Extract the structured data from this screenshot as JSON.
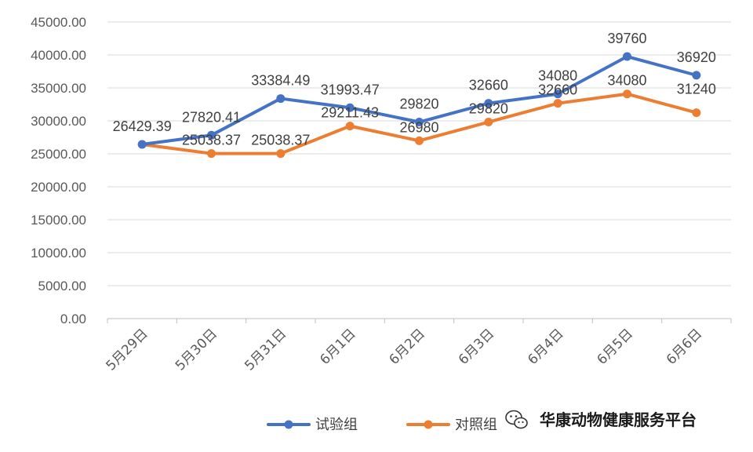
{
  "chart_data": {
    "type": "line",
    "categories": [
      "5月29日",
      "5月30日",
      "5月31日",
      "6月1日",
      "6月2日",
      "6月3日",
      "6月4日",
      "6月5日",
      "6月6日"
    ],
    "y_tick_labels": [
      "0.00",
      "5000.00",
      "10000.00",
      "15000.00",
      "20000.00",
      "25000.00",
      "30000.00",
      "35000.00",
      "40000.00",
      "45000.00"
    ],
    "ylim": [
      0,
      45000
    ],
    "grid": true,
    "legend_position": "bottom",
    "series": [
      {
        "name": "试验组",
        "color": "#4472C4",
        "values": [
          26429.39,
          27820.41,
          33384.49,
          31993.47,
          29820,
          32660,
          34080,
          39760,
          36920
        ],
        "labels": [
          "26429.39",
          "27820.41",
          "33384.49",
          "31993.47",
          "29820",
          "32660",
          "34080",
          "39760",
          "36920"
        ]
      },
      {
        "name": "对照组",
        "color": "#ED7D31",
        "values": [
          26429.39,
          25038.37,
          25038.37,
          29211.43,
          26980,
          29820,
          32660,
          34080,
          31240
        ],
        "labels": [
          "",
          "25038.37",
          "25038.37",
          "29211.43",
          "26980",
          "29820",
          "32660",
          "34080",
          "31240"
        ]
      }
    ]
  },
  "watermark": {
    "icon": "wechat-icon",
    "text": "华康动物健康服务平台"
  }
}
